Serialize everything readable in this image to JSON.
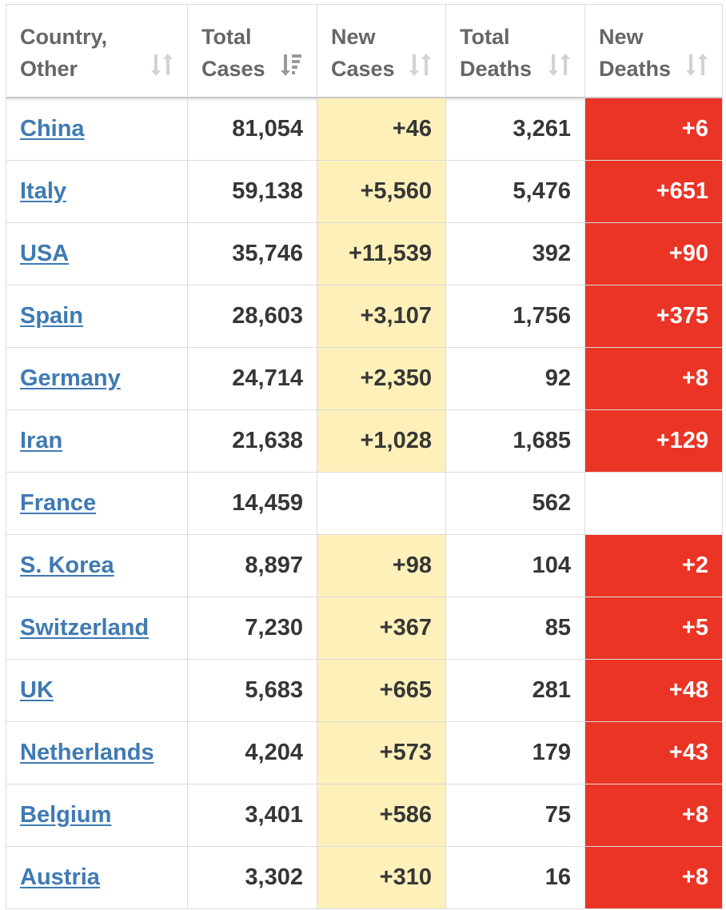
{
  "table": {
    "headers": [
      {
        "label": "Country,\nOther",
        "sort_icon": "sort-both-icon"
      },
      {
        "label": "Total\nCases",
        "sort_icon": "sort-descending-icon"
      },
      {
        "label": "New\nCases",
        "sort_icon": "sort-both-icon"
      },
      {
        "label": "Total\nDeaths",
        "sort_icon": "sort-both-icon"
      },
      {
        "label": "New\nDeaths",
        "sort_icon": "sort-both-icon"
      }
    ],
    "colors": {
      "new_cases_highlight": "#fdf1b9",
      "new_deaths_highlight": "#ea3426",
      "link": "#3f7ab3"
    },
    "rows": [
      {
        "country": "China",
        "total_cases": "81,054",
        "new_cases": "+46",
        "total_deaths": "3,261",
        "new_deaths": "+6"
      },
      {
        "country": "Italy",
        "total_cases": "59,138",
        "new_cases": "+5,560",
        "total_deaths": "5,476",
        "new_deaths": "+651"
      },
      {
        "country": "USA",
        "total_cases": "35,746",
        "new_cases": "+11,539",
        "total_deaths": "392",
        "new_deaths": "+90"
      },
      {
        "country": "Spain",
        "total_cases": "28,603",
        "new_cases": "+3,107",
        "total_deaths": "1,756",
        "new_deaths": "+375"
      },
      {
        "country": "Germany",
        "total_cases": "24,714",
        "new_cases": "+2,350",
        "total_deaths": "92",
        "new_deaths": "+8"
      },
      {
        "country": "Iran",
        "total_cases": "21,638",
        "new_cases": "+1,028",
        "total_deaths": "1,685",
        "new_deaths": "+129"
      },
      {
        "country": "France",
        "total_cases": "14,459",
        "new_cases": "",
        "total_deaths": "562",
        "new_deaths": ""
      },
      {
        "country": "S. Korea",
        "total_cases": "8,897",
        "new_cases": "+98",
        "total_deaths": "104",
        "new_deaths": "+2"
      },
      {
        "country": "Switzerland",
        "total_cases": "7,230",
        "new_cases": "+367",
        "total_deaths": "85",
        "new_deaths": "+5"
      },
      {
        "country": "UK",
        "total_cases": "5,683",
        "new_cases": "+665",
        "total_deaths": "281",
        "new_deaths": "+48"
      },
      {
        "country": "Netherlands",
        "total_cases": "4,204",
        "new_cases": "+573",
        "total_deaths": "179",
        "new_deaths": "+43"
      },
      {
        "country": "Belgium",
        "total_cases": "3,401",
        "new_cases": "+586",
        "total_deaths": "75",
        "new_deaths": "+8"
      },
      {
        "country": "Austria",
        "total_cases": "3,302",
        "new_cases": "+310",
        "total_deaths": "16",
        "new_deaths": "+8"
      }
    ]
  }
}
